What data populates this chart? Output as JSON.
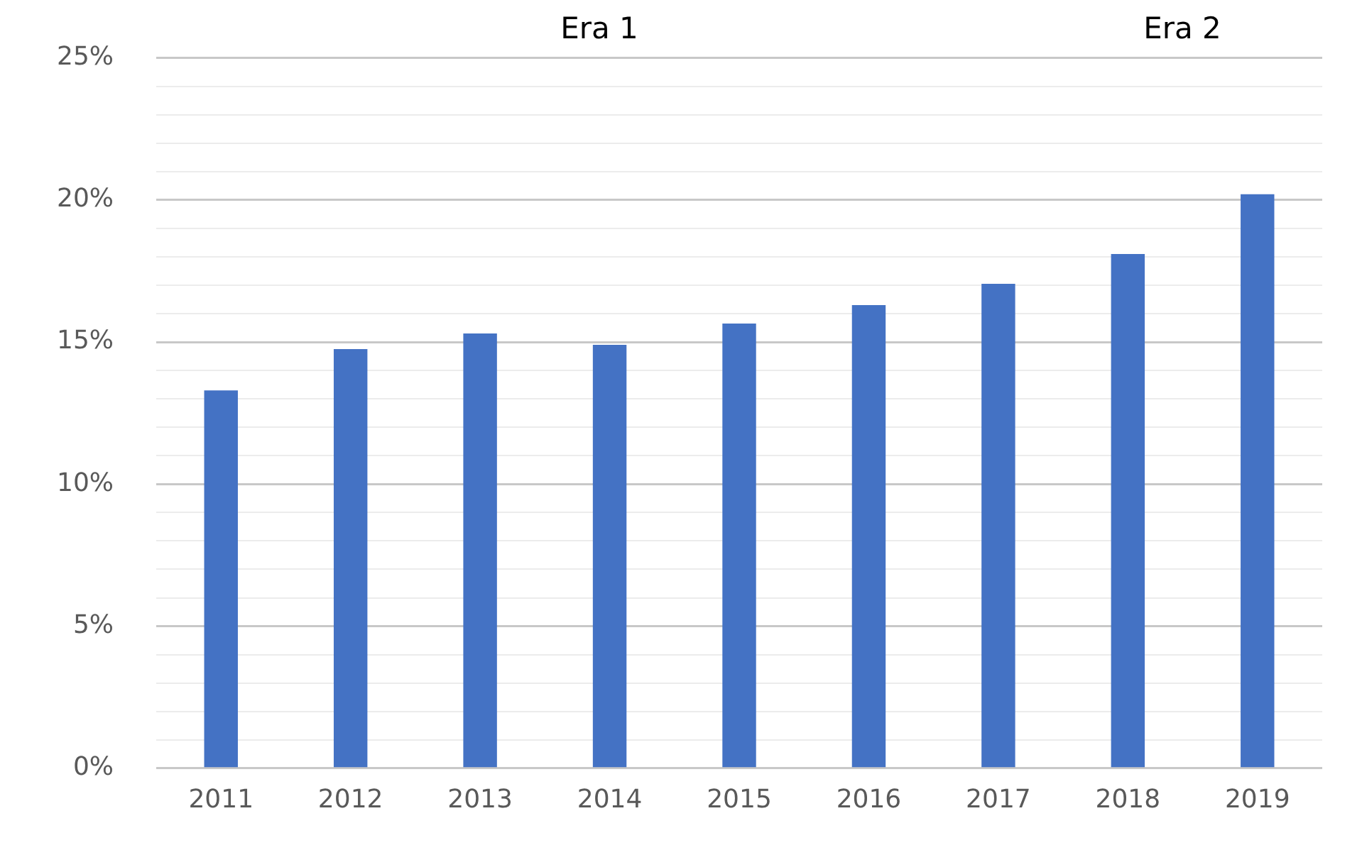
{
  "chart_data": {
    "type": "bar",
    "categories": [
      "2011",
      "2012",
      "2013",
      "2014",
      "2015",
      "2016",
      "2017",
      "2018",
      "2019"
    ],
    "values": [
      13.3,
      14.75,
      15.3,
      14.9,
      15.65,
      16.3,
      17.05,
      18.1,
      20.2
    ],
    "color": "#4472c4",
    "ylim": [
      0,
      25
    ],
    "yticks": [
      {
        "value": 0,
        "label": "0%"
      },
      {
        "value": 1,
        "label": null
      },
      {
        "value": 2,
        "label": null
      },
      {
        "value": 3,
        "label": null
      },
      {
        "value": 4,
        "label": null
      },
      {
        "value": 5,
        "label": "5%"
      },
      {
        "value": 6,
        "label": null
      },
      {
        "value": 7,
        "label": null
      },
      {
        "value": 8,
        "label": null
      },
      {
        "value": 9,
        "label": null
      },
      {
        "value": 10,
        "label": "10%"
      },
      {
        "value": 11,
        "label": null
      },
      {
        "value": 12,
        "label": null
      },
      {
        "value": 13,
        "label": null
      },
      {
        "value": 14,
        "label": null
      },
      {
        "value": 15,
        "label": "15%"
      },
      {
        "value": 16,
        "label": null
      },
      {
        "value": 17,
        "label": null
      },
      {
        "value": 18,
        "label": null
      },
      {
        "value": 19,
        "label": null
      },
      {
        "value": 20,
        "label": "20%"
      },
      {
        "value": 21,
        "label": null
      },
      {
        "value": 22,
        "label": null
      },
      {
        "value": 23,
        "label": null
      },
      {
        "value": 24,
        "label": null
      },
      {
        "value": 25,
        "label": "25%"
      }
    ],
    "grid": "y",
    "annotations": [
      "Era 1",
      "Era 2"
    ]
  }
}
